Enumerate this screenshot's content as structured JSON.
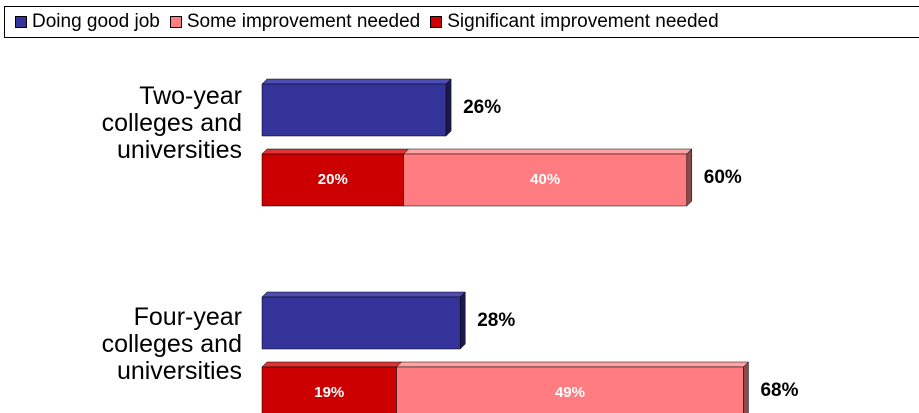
{
  "chart_data": {
    "type": "bar",
    "orientation": "horizontal",
    "legend_position": "top",
    "legend": [
      {
        "key": "good",
        "label": "Doing good job",
        "color": "#333399"
      },
      {
        "key": "some",
        "label": "Some improvement needed",
        "color": "#FF7C80"
      },
      {
        "key": "significant",
        "label": "Significant improvement needed",
        "color": "#CC0000"
      }
    ],
    "categories": [
      {
        "label_lines": [
          "Two-year",
          "colleges and",
          "universities"
        ],
        "good": 26,
        "good_label": "26%",
        "significant": 20,
        "significant_label": "20%",
        "some": 40,
        "some_label": "40%",
        "needs_total_label": "60%"
      },
      {
        "label_lines": [
          "Four-year",
          "colleges and",
          "universities"
        ],
        "good": 28,
        "good_label": "28%",
        "significant": 19,
        "significant_label": "19%",
        "some": 49,
        "some_label": "49%",
        "needs_total_label": "68%"
      }
    ]
  }
}
